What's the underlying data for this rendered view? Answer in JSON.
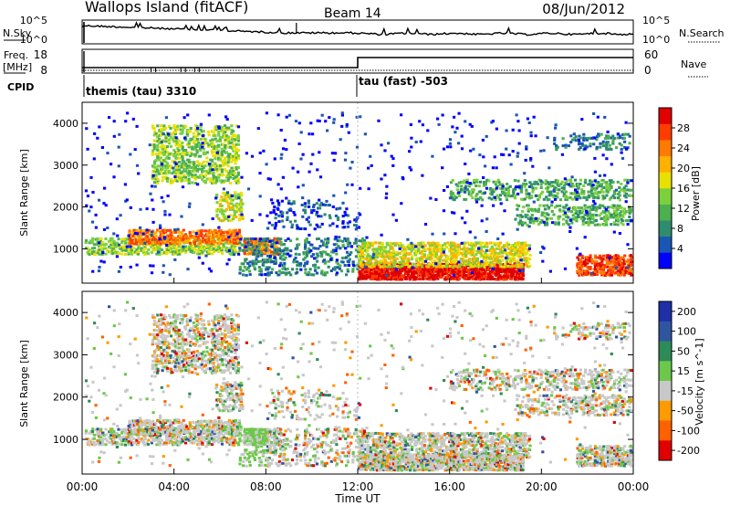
{
  "header": {
    "title": "Wallops Island (fitACF)",
    "beam": "Beam 14",
    "date": "08/Jun/2012"
  },
  "params": {
    "nsky_label": "N.Sky",
    "nsearch_label": "N.Search",
    "freq_label": "Freq.",
    "freq_unit": "[MHz]",
    "nave_label": "Nave",
    "cpid_label": "CPID",
    "noise_ticks": [
      "10^5",
      "10^0"
    ],
    "freq_ticks": [
      "18",
      "8"
    ],
    "nave_ticks": [
      "60",
      "0"
    ],
    "cpid_segments": [
      {
        "label": "themis (tau) 3310",
        "start": "00:00"
      },
      {
        "label": "tau (fast) -503",
        "start": "12:00"
      }
    ]
  },
  "chart_data": [
    {
      "type": "heatmap",
      "title": "",
      "xlabel": "",
      "ylabel": "Slant Range [km]",
      "ylim": [
        180,
        4500
      ],
      "yticks": [
        "1000",
        "2000",
        "3000",
        "4000"
      ],
      "colorbar": {
        "label": "Power [dB]",
        "ticks": [
          "28",
          "24",
          "20",
          "16",
          "12",
          "8",
          "4"
        ],
        "colors": [
          "#0000ff",
          "#1a56b4",
          "#2f8c6e",
          "#4caf50",
          "#7bd03c",
          "#e8e000",
          "#ffb000",
          "#ff7a00",
          "#ff3c00",
          "#e00000"
        ]
      }
    },
    {
      "type": "heatmap",
      "title": "",
      "xlabel": "Time UT",
      "ylabel": "Slant Range [km]",
      "ylim": [
        180,
        4500
      ],
      "xticks": [
        "00:00",
        "04:00",
        "08:00",
        "12:00",
        "16:00",
        "20:00",
        "00:00"
      ],
      "yticks": [
        "1000",
        "2000",
        "3000",
        "4000"
      ],
      "colorbar": {
        "label": "Velocity [m s^-1]",
        "ticks": [
          "200",
          "100",
          "50",
          "15",
          "-15",
          "-50",
          "-100",
          "-200"
        ],
        "colors": [
          "#1f2fa8",
          "#2f55a0",
          "#2e8b57",
          "#6cc84a",
          "#c8c8c8",
          "#ff9a00",
          "#ff6000",
          "#e00000"
        ]
      }
    }
  ]
}
